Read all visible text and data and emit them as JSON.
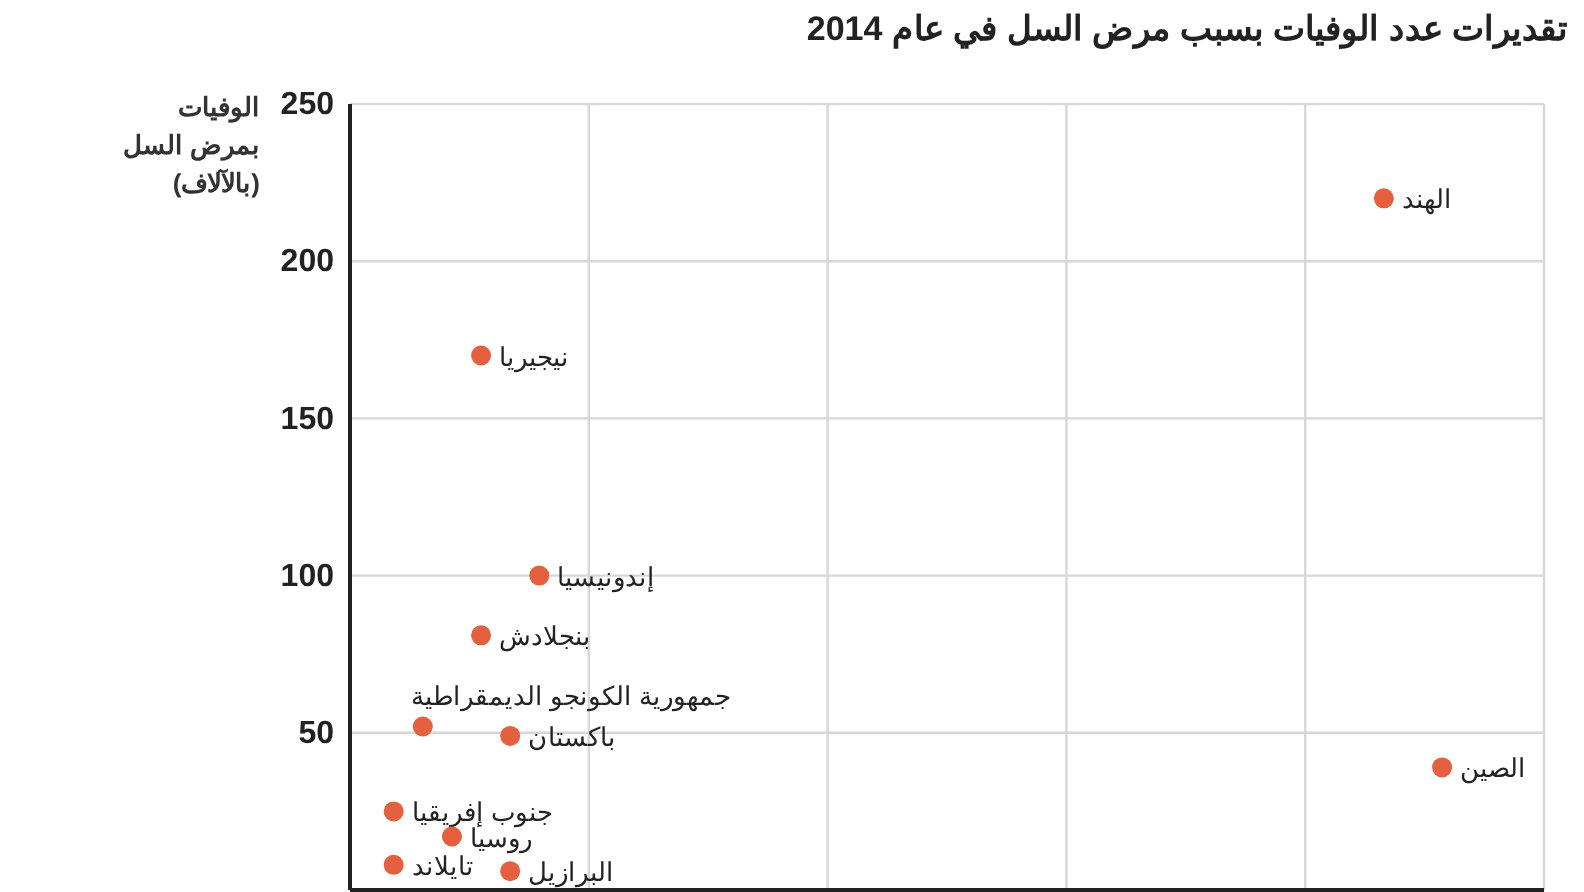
{
  "chart_data": {
    "type": "scatter",
    "title": "تقديرات عدد الوفيات بسبب مرض السل في عام 2014",
    "ylabel": "الوفيات بمرض السل (بالآلاف)",
    "categories": [
      null,
      null,
      null,
      null,
      null,
      null,
      null,
      null,
      null,
      null,
      null,
      null,
      null,
      null,
      null,
      null,
      null,
      null,
      null,
      null,
      null,
      null,
      null,
      null,
      null,
      null,
      null,
      null,
      null,
      null,
      null,
      null,
      null,
      null,
      null,
      null,
      null,
      null,
      null,
      null,
      null
    ],
    "ylim": [
      0,
      250
    ],
    "yticks": [
      50,
      100,
      150,
      200,
      250
    ],
    "grid": true,
    "marker": "circle",
    "series": [
      {
        "name": "الهند",
        "color": "#e4603e",
        "values": [
          null,
          null,
          null,
          null,
          null,
          null,
          null,
          null,
          null,
          null,
          null,
          null,
          null,
          null,
          null,
          null,
          null,
          null,
          null,
          null,
          null,
          null,
          null,
          null,
          null,
          null,
          null,
          null,
          null,
          null,
          null,
          null,
          null,
          null,
          null,
          220,
          null,
          null,
          null,
          null,
          null
        ]
      },
      {
        "name": "نيجيريا",
        "color": "#e4603e",
        "values": [
          null,
          null,
          null,
          null,
          170,
          null,
          null,
          null,
          null,
          null,
          null,
          null,
          null,
          null,
          null,
          null,
          null,
          null,
          null,
          null,
          null,
          null,
          null,
          null,
          null,
          null,
          null,
          null,
          null,
          null,
          null,
          null,
          null,
          null,
          null,
          null,
          null,
          null,
          null,
          null,
          null
        ]
      },
      {
        "name": "إندونيسيا",
        "color": "#e4603e",
        "values": [
          null,
          null,
          null,
          null,
          null,
          null,
          100,
          null,
          null,
          null,
          null,
          null,
          null,
          null,
          null,
          null,
          null,
          null,
          null,
          null,
          null,
          null,
          null,
          null,
          null,
          null,
          null,
          null,
          null,
          null,
          null,
          null,
          null,
          null,
          null,
          null,
          null,
          null,
          null,
          null,
          null
        ]
      },
      {
        "name": "بنجلادش",
        "color": "#e4603e",
        "values": [
          null,
          null,
          null,
          null,
          81,
          null,
          null,
          null,
          null,
          null,
          null,
          null,
          null,
          null,
          null,
          null,
          null,
          null,
          null,
          null,
          null,
          null,
          null,
          null,
          null,
          null,
          null,
          null,
          null,
          null,
          null,
          null,
          null,
          null,
          null,
          null,
          null,
          null,
          null,
          null,
          null
        ]
      },
      {
        "name": "جمهورية الكونجو الديمقراطية",
        "color": "#e4603e",
        "values": [
          null,
          null,
          52,
          null,
          null,
          null,
          null,
          null,
          null,
          null,
          null,
          null,
          null,
          null,
          null,
          null,
          null,
          null,
          null,
          null,
          null,
          null,
          null,
          null,
          null,
          null,
          null,
          null,
          null,
          null,
          null,
          null,
          null,
          null,
          null,
          null,
          null,
          null,
          null,
          null,
          null
        ]
      },
      {
        "name": "باكستان",
        "color": "#e4603e",
        "values": [
          null,
          null,
          null,
          null,
          null,
          49,
          null,
          null,
          null,
          null,
          null,
          null,
          null,
          null,
          null,
          null,
          null,
          null,
          null,
          null,
          null,
          null,
          null,
          null,
          null,
          null,
          null,
          null,
          null,
          null,
          null,
          null,
          null,
          null,
          null,
          null,
          null,
          null,
          null,
          null,
          null
        ]
      },
      {
        "name": "جنوب إفريقيا",
        "color": "#e4603e",
        "values": [
          null,
          25,
          null,
          null,
          null,
          null,
          null,
          null,
          null,
          null,
          null,
          null,
          null,
          null,
          null,
          null,
          null,
          null,
          null,
          null,
          null,
          null,
          null,
          null,
          null,
          null,
          null,
          null,
          null,
          null,
          null,
          null,
          null,
          null,
          null,
          null,
          null,
          null,
          null,
          null,
          null
        ]
      },
      {
        "name": "روسيا",
        "color": "#e4603e",
        "values": [
          null,
          null,
          null,
          17,
          null,
          null,
          null,
          null,
          null,
          null,
          null,
          null,
          null,
          null,
          null,
          null,
          null,
          null,
          null,
          null,
          null,
          null,
          null,
          null,
          null,
          null,
          null,
          null,
          null,
          null,
          null,
          null,
          null,
          null,
          null,
          null,
          null,
          null,
          null,
          null,
          null
        ]
      },
      {
        "name": "تايلاند",
        "color": "#e4603e",
        "values": [
          null,
          8,
          null,
          null,
          null,
          null,
          null,
          null,
          null,
          null,
          null,
          null,
          null,
          null,
          null,
          null,
          null,
          null,
          null,
          null,
          null,
          null,
          null,
          null,
          null,
          null,
          null,
          null,
          null,
          null,
          null,
          null,
          null,
          null,
          null,
          null,
          null,
          null,
          null,
          null,
          null
        ]
      },
      {
        "name": "البرازيل",
        "color": "#e4603e",
        "values": [
          null,
          null,
          null,
          null,
          null,
          6,
          null,
          null,
          null,
          null,
          null,
          null,
          null,
          null,
          null,
          null,
          null,
          null,
          null,
          null,
          null,
          null,
          null,
          null,
          null,
          null,
          null,
          null,
          null,
          null,
          null,
          null,
          null,
          null,
          null,
          null,
          null,
          null,
          null,
          null,
          null
        ]
      },
      {
        "name": "الصين",
        "color": "#e4603e",
        "values": [
          null,
          null,
          null,
          null,
          null,
          null,
          null,
          null,
          null,
          null,
          null,
          null,
          null,
          null,
          null,
          null,
          null,
          null,
          null,
          null,
          null,
          null,
          null,
          null,
          null,
          null,
          null,
          null,
          null,
          null,
          null,
          null,
          null,
          null,
          null,
          null,
          null,
          39,
          null,
          null,
          null
        ]
      }
    ]
  }
}
